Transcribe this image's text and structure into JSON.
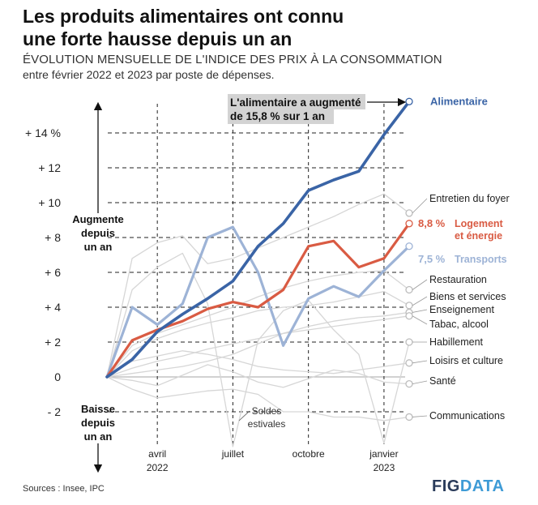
{
  "header": {
    "title_line1": "Les produits alimentaires ont connu",
    "title_line2": "une forte hausse depuis un an",
    "subtitle": "ÉVOLUTION MENSUELLE DE L'INDICE DES PRIX À LA CONSOMMATION",
    "subtitle2": "entre février 2022 et 2023 par poste de dépenses."
  },
  "footer": {
    "source": "Sources : Insee, IPC",
    "brand_fig": "FIG",
    "brand_data": "DATA"
  },
  "annotations": {
    "callout_line1": "L'alimentaire a augmenté",
    "callout_line2": "de 15,8 % sur 1 an",
    "up_line1": "Augmente",
    "up_line2": "depuis",
    "up_line3": "un an",
    "down_line1": "Baisse",
    "down_line2": "depuis",
    "down_line3": "un an",
    "soldes_line1": "Soldes",
    "soldes_line2": "estivales"
  },
  "colors": {
    "alimentaire": "#3a64a6",
    "logement": "#d95b43",
    "transports": "#9db3d6",
    "other": "#d6d6d6"
  },
  "chart_data": {
    "type": "line",
    "x": [
      "2022-02",
      "2022-03",
      "2022-04",
      "2022-05",
      "2022-06",
      "2022-07",
      "2022-08",
      "2022-09",
      "2022-10",
      "2022-11",
      "2022-12",
      "2023-01",
      "2023-02"
    ],
    "ylim": [
      -3,
      16
    ],
    "yticks": [
      "- 2",
      "0",
      "+ 2",
      "+ 4",
      "+ 6",
      "+ 8",
      "+ 10",
      "+ 12",
      "+ 14 %"
    ],
    "ytick_values": [
      -2,
      0,
      2,
      4,
      6,
      8,
      10,
      12,
      14
    ],
    "xticks": [
      {
        "month": "2022-04",
        "label": "avril",
        "year": "2022"
      },
      {
        "month": "2022-07",
        "label": "juillet",
        "year": ""
      },
      {
        "month": "2022-10",
        "label": "octobre",
        "year": ""
      },
      {
        "month": "2023-01",
        "label": "janvier",
        "year": "2023"
      }
    ],
    "grid": true,
    "series": [
      {
        "name": "Alimentaire",
        "label": "Alimentaire",
        "highlight": "alimentaire",
        "values": [
          0,
          1.0,
          2.6,
          3.6,
          4.5,
          5.5,
          7.5,
          8.8,
          10.7,
          11.3,
          11.8,
          13.9,
          15.8
        ]
      },
      {
        "name": "Logement et énergie",
        "label_value": "8,8 %",
        "label_line1": "Logement",
        "label_line2": "et énergie",
        "highlight": "logement",
        "values": [
          0,
          2.1,
          2.7,
          3.2,
          3.9,
          4.3,
          4.0,
          5.0,
          7.5,
          7.8,
          6.3,
          6.8,
          8.8
        ]
      },
      {
        "name": "Transports",
        "label_value": "7,5 %",
        "label_line1": "Transports",
        "highlight": "transports",
        "values": [
          0,
          4.0,
          3.0,
          4.2,
          8.0,
          8.6,
          6.0,
          1.8,
          4.5,
          5.2,
          4.6,
          6.1,
          7.5
        ]
      },
      {
        "name": "Entretien du foyer",
        "label": "Entretien du foyer",
        "values": [
          0,
          6.8,
          7.7,
          8.1,
          6.5,
          6.8,
          7.4,
          8.0,
          8.6,
          9.2,
          9.9,
          10.5,
          9.4
        ]
      },
      {
        "name": "Restauration",
        "label": "Restauration",
        "values": [
          0,
          1.8,
          2.5,
          3.0,
          3.5,
          4.0,
          4.6,
          5.1,
          5.5,
          5.8,
          6.0,
          6.1,
          5.0
        ]
      },
      {
        "name": "Biens et services",
        "label": "Biens et services",
        "values": [
          0,
          1.5,
          2.2,
          2.7,
          3.1,
          3.4,
          3.8,
          4.0,
          4.1,
          4.3,
          4.6,
          4.9,
          4.1
        ]
      },
      {
        "name": "Enseignement",
        "label": "Enseignement",
        "values": [
          0,
          0.2,
          0.4,
          0.6,
          0.9,
          1.3,
          1.9,
          2.5,
          2.9,
          3.2,
          3.4,
          3.5,
          3.7
        ]
      },
      {
        "name": "Tabac, alcool",
        "label": "Tabac, alcool",
        "values": [
          0,
          0.5,
          0.9,
          1.2,
          1.6,
          1.9,
          2.2,
          2.5,
          2.7,
          2.9,
          3.1,
          3.3,
          3.5
        ]
      },
      {
        "name": "Habillement",
        "label": "Habillement",
        "values": [
          0,
          5.0,
          6.3,
          7.1,
          4.2,
          -4.0,
          2.1,
          3.8,
          4.4,
          2.7,
          1.3,
          -3.8,
          2.0
        ]
      },
      {
        "name": "Loisirs et culture",
        "label": "Loisirs et culture",
        "values": [
          0,
          0.9,
          1.2,
          1.5,
          1.3,
          1.0,
          0.6,
          0.4,
          0.3,
          0.2,
          0.4,
          0.6,
          0.8
        ]
      },
      {
        "name": "Santé",
        "label": "Santé",
        "values": [
          0,
          -0.2,
          -0.5,
          0.1,
          0.7,
          0.3,
          -0.3,
          -0.6,
          -0.1,
          0.4,
          0.2,
          -0.3,
          -0.4
        ]
      },
      {
        "name": "Communications",
        "label": "Communications",
        "values": [
          0,
          -0.7,
          -1.2,
          -1.0,
          -0.8,
          -0.7,
          -1.0,
          -2.0,
          -2.0,
          -2.3,
          -2.3,
          -2.5,
          -2.3
        ]
      }
    ]
  }
}
